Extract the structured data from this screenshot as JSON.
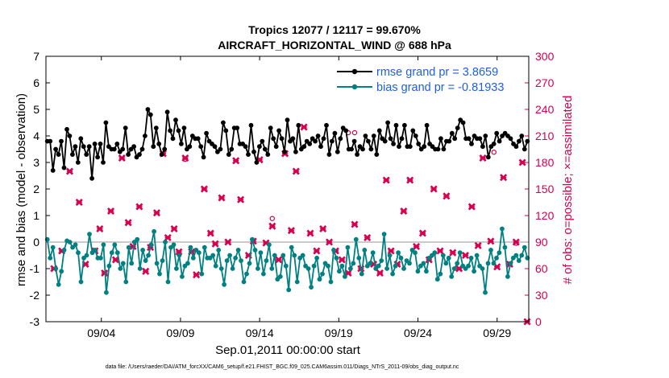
{
  "chart_data": {
    "type": "line",
    "title_line1": "Tropics 12077 / 12117 = 99.670%",
    "title_line2": "AIRCRAFT_HORIZONTAL_WIND @ 688 hPa",
    "xlabel": "Sep.01,2011 00:00:00 start",
    "ylabel_left": "rmse and bias (model - observation)",
    "ylabel_right": "# of obs: o=possible; ×=assimilated",
    "ylim_left": [
      -3,
      7
    ],
    "yticks_left": [
      "-3",
      "-2",
      "-1",
      "0",
      "1",
      "2",
      "3",
      "4",
      "5",
      "6",
      "7"
    ],
    "ylim_right": [
      0,
      300
    ],
    "yticks_right": [
      "0",
      "30",
      "60",
      "90",
      "120",
      "150",
      "180",
      "210",
      "240",
      "270",
      "300"
    ],
    "xlim_days": [
      0.5,
      31.0
    ],
    "xtick_days": [
      4,
      9,
      14,
      19,
      24,
      29
    ],
    "xtick_labels": [
      "09/04",
      "09/09",
      "09/14",
      "09/19",
      "09/24",
      "09/29"
    ],
    "footer": "data file: /Users/raeder/DAI/ATM_forcXX/CAM6_setup/f.e21.FHIST_BGC.f09_025.CAM6assim.011/Diags_NTrS_2011-09/obs_diag_output.nc",
    "colors": {
      "rmse": "#000000",
      "bias": "#008080",
      "obs": "#d6004f",
      "zero_line": "#b8b8b8",
      "legend_text": "#1f5fe0"
    },
    "series": [
      {
        "name": "rmse grand pr = 3.8659",
        "axis": "left",
        "values": [
          3.8,
          3.8,
          2.7,
          3.5,
          3.3,
          3.8,
          2.8,
          4.25,
          4.0,
          3.3,
          3.6,
          3.0,
          3.9,
          3.6,
          3.3,
          3.6,
          2.4,
          3.7,
          3.2,
          3.7,
          3.0,
          4.5,
          3.6,
          3.5,
          3.5,
          3.7,
          3.4,
          3.5,
          4.3,
          3.3,
          3.5,
          3.6,
          3.2,
          3.3,
          3.5,
          4.0,
          5.0,
          4.8,
          3.6,
          4.3,
          3.7,
          3.3,
          3.5,
          4.9,
          4.2,
          3.9,
          4.6,
          4.2,
          3.7,
          4.3,
          3.5,
          3.6,
          4.0,
          3.9,
          3.9,
          3.6,
          3.2,
          4.1,
          3.8,
          3.7,
          3.6,
          3.4,
          3.5,
          4.5,
          4.2,
          3.3,
          3.5,
          4.3,
          4.3,
          3.7,
          3.7,
          3.6,
          3.3,
          4.4,
          3.4,
          3.0,
          3.6,
          3.8,
          3.5,
          3.3,
          4.3,
          3.9,
          3.6,
          4.2,
          3.9,
          3.4,
          4.6,
          3.8,
          3.9,
          3.4,
          4.4,
          3.5,
          3.6,
          3.8,
          3.7,
          3.9,
          3.8,
          4.0,
          3.6,
          3.9,
          4.4,
          3.3,
          3.8,
          4.1,
          3.4,
          3.9,
          4.3,
          4.2,
          3.5,
          3.5,
          3.8,
          3.3,
          3.6,
          3.5,
          4.0,
          3.8,
          3.5,
          4.0,
          3.3,
          4.2,
          3.9,
          3.8,
          4.5,
          3.9,
          3.7,
          4.4,
          3.6,
          3.9,
          4.4,
          3.6,
          3.6,
          4.2,
          4.0,
          3.7,
          3.5,
          3.6,
          4.4,
          3.7,
          3.6,
          3.5,
          3.5,
          3.9,
          3.5,
          3.8,
          3.8,
          4.1,
          3.9,
          4.3,
          4.6,
          4.5,
          3.9,
          3.9,
          3.7,
          4.0,
          3.9,
          3.9,
          3.6,
          4.0,
          3.2,
          3.6,
          3.7,
          4.1,
          3.8,
          4.0,
          4.1,
          4.0,
          3.9,
          3.7,
          3.6,
          3.8,
          4.0,
          3.5,
          3.8
        ]
      },
      {
        "name": "bias grand pr = -0.81933",
        "axis": "left",
        "values": [
          0.1,
          -0.6,
          -0.2,
          -1.0,
          -1.6,
          -1.1,
          -0.3,
          0.05,
          0.0,
          -0.2,
          -0.1,
          -0.4,
          -1.5,
          -0.6,
          -0.5,
          0.3,
          -0.4,
          -0.3,
          -0.6,
          -0.6,
          -0.1,
          -1.9,
          -0.9,
          -0.4,
          -0.1,
          -0.4,
          -1.0,
          -0.8,
          -1.5,
          -0.2,
          -0.8,
          0.0,
          0.1,
          -1.0,
          -0.3,
          -0.7,
          -0.5,
          -0.1,
          0.4,
          -0.8,
          -1.2,
          -0.7,
          0.0,
          -1.5,
          -0.2,
          -0.1,
          -1.0,
          -0.5,
          -1.3,
          -0.9,
          -0.8,
          -0.2,
          -0.6,
          -0.3,
          -0.4,
          -1.2,
          -0.2,
          -0.6,
          -0.6,
          -0.5,
          -0.9,
          -0.3,
          -1.0,
          -1.6,
          -0.7,
          -0.5,
          -1.0,
          -0.6,
          -0.3,
          -0.7,
          -1.5,
          -1.2,
          -0.8,
          0.1,
          -0.3,
          -1.0,
          -0.4,
          -1.2,
          -0.7,
          -0.1,
          -1.0,
          -0.5,
          -1.4,
          -1.3,
          -0.5,
          -0.9,
          -1.8,
          -0.2,
          -0.5,
          -1.5,
          -0.6,
          -0.5,
          -0.9,
          -1.0,
          -1.7,
          -0.9,
          -0.6,
          -1.4,
          -1.2,
          -0.8,
          -0.9,
          -1.5,
          -0.3,
          -0.6,
          -1.1,
          -0.9,
          -1.3,
          -0.2,
          -1.0,
          -0.8,
          0.1,
          -0.6,
          -1.2,
          -0.3,
          -0.9,
          -0.8,
          -0.4,
          -1.0,
          -0.9,
          -0.7,
          0.3,
          -1.0,
          -0.5,
          -1.2,
          -0.9,
          -0.4,
          -0.6,
          -1.0,
          -0.7,
          -0.8,
          -0.3,
          -0.4,
          -1.1,
          -0.9,
          -0.8,
          -1.1,
          -0.6,
          -0.5,
          -0.4,
          -1.4,
          -1.2,
          -0.5,
          -0.8,
          -0.6,
          -1.3,
          -1.0,
          -0.8,
          -0.4,
          -0.9,
          -1.0,
          -0.9,
          -0.6,
          -1.1,
          -0.5,
          -0.9,
          -1.0,
          -1.9,
          -0.8,
          -0.3,
          -0.8,
          -0.6,
          -0.4,
          0.5,
          -0.2,
          -1.3,
          -0.8,
          -0.6,
          -0.5,
          -0.7,
          -0.5,
          -0.2,
          -0.6
        ]
      }
    ],
    "obs_assimilated": {
      "name": "# assimilated",
      "axis": "right",
      "points": [
        [
          1.0,
          60
        ],
        [
          1.5,
          80
        ],
        [
          2.0,
          170
        ],
        [
          2.6,
          135
        ],
        [
          3.0,
          65
        ],
        [
          3.6,
          80
        ],
        [
          3.9,
          105
        ],
        [
          4.2,
          55
        ],
        [
          4.6,
          125
        ],
        [
          4.9,
          70
        ],
        [
          5.3,
          185
        ],
        [
          5.7,
          112
        ],
        [
          6.0,
          85
        ],
        [
          6.4,
          130
        ],
        [
          6.8,
          57
        ],
        [
          7.1,
          84
        ],
        [
          7.5,
          123
        ],
        [
          7.9,
          190
        ],
        [
          8.2,
          95
        ],
        [
          8.6,
          105
        ],
        [
          8.9,
          79
        ],
        [
          9.3,
          185
        ],
        [
          9.7,
          79
        ],
        [
          10.0,
          53
        ],
        [
          10.5,
          150
        ],
        [
          10.9,
          100
        ],
        [
          11.2,
          88
        ],
        [
          11.6,
          140
        ],
        [
          12.0,
          90
        ],
        [
          12.5,
          182
        ],
        [
          12.8,
          138
        ],
        [
          13.3,
          75
        ],
        [
          13.6,
          91
        ],
        [
          14.0,
          183
        ],
        [
          14.4,
          89
        ],
        [
          14.8,
          108
        ],
        [
          15.2,
          70
        ],
        [
          15.6,
          190
        ],
        [
          16.0,
          103
        ],
        [
          16.3,
          170
        ],
        [
          16.8,
          220
        ],
        [
          17.2,
          100
        ],
        [
          17.6,
          80
        ],
        [
          18.0,
          105
        ],
        [
          18.4,
          90
        ],
        [
          18.8,
          80
        ],
        [
          19.2,
          70
        ],
        [
          19.6,
          55
        ],
        [
          20.0,
          110
        ],
        [
          20.4,
          60
        ],
        [
          20.8,
          95
        ],
        [
          21.2,
          65
        ],
        [
          21.6,
          55
        ],
        [
          22.0,
          160
        ],
        [
          22.3,
          80
        ],
        [
          22.7,
          65
        ],
        [
          23.1,
          125
        ],
        [
          23.5,
          160
        ],
        [
          23.9,
          85
        ],
        [
          24.3,
          100
        ],
        [
          24.7,
          70
        ],
        [
          25.0,
          150
        ],
        [
          25.4,
          80
        ],
        [
          25.8,
          142
        ],
        [
          26.2,
          78
        ],
        [
          26.6,
          60
        ],
        [
          27.0,
          75
        ],
        [
          27.4,
          130
        ],
        [
          27.8,
          86
        ],
        [
          28.1,
          185
        ],
        [
          28.6,
          91
        ],
        [
          29.0,
          62
        ],
        [
          29.4,
          163
        ],
        [
          29.8,
          65
        ],
        [
          30.2,
          90
        ],
        [
          30.6,
          180
        ],
        [
          30.9,
          0
        ]
      ]
    },
    "obs_possible": {
      "name": "# possible",
      "axis": "right",
      "points": [
        [
          9.3,
          180
        ],
        [
          14.8,
          113
        ],
        [
          19.6,
          210
        ],
        [
          20.0,
          210
        ],
        [
          28.8,
          188
        ],
        [
          30.2,
          85
        ]
      ]
    }
  },
  "legend": {
    "rmse": "rmse grand pr = 3.8659",
    "bias": "bias grand pr = -0.81933"
  }
}
